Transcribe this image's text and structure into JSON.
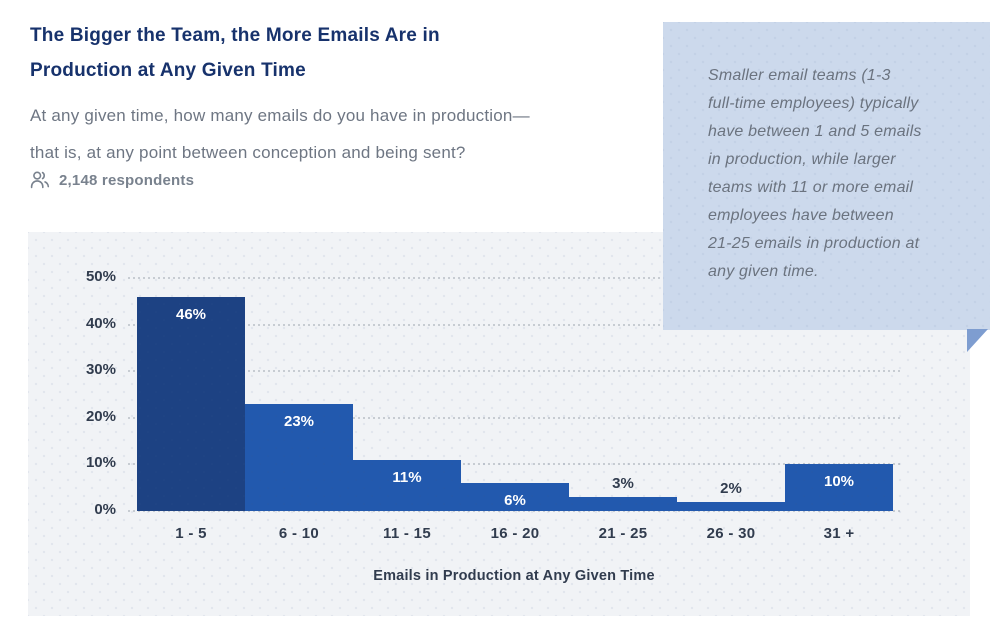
{
  "header": {
    "title_lines": [
      "The Bigger the Team, the More Emails Are in",
      "Production at Any Given Time"
    ],
    "subtitle_lines": [
      "At any given time, how many emails do you have in production—",
      "that is, at any point between conception and being sent?"
    ],
    "respondents_count": "2,148 respondents",
    "respondents_icon": "people-icon"
  },
  "callout": {
    "lines": [
      "Smaller email teams (1-3",
      "full-time employees) typically",
      "have between 1 and 5 emails",
      "in production, while larger",
      "teams with 11 or more email",
      "employees have between",
      "21-25 emails in production at",
      "any given time."
    ]
  },
  "chart_data": {
    "type": "bar",
    "categories": [
      "1 - 5",
      "6 - 10",
      "11 - 15",
      "16 - 20",
      "21 - 25",
      "26 - 30",
      "31 +"
    ],
    "values": [
      46,
      23,
      11,
      6,
      3,
      2,
      10
    ],
    "value_labels": [
      "46%",
      "23%",
      "11%",
      "6%",
      "3%",
      "2%",
      "10%"
    ],
    "title": "",
    "xlabel": "Emails in Production at Any Given Time",
    "ylabel": "",
    "ylim": [
      0,
      50
    ],
    "yticks": [
      "0%",
      "10%",
      "20%",
      "30%",
      "40%",
      "50%"
    ],
    "grid": "horizontal-dotted",
    "legend": "none",
    "label_placement_rule": "inside-top when value >= 6, above bar when value < 6"
  },
  "colors": {
    "title": "#17326c",
    "subtitle": "#6e7683",
    "muted": "#79828e",
    "panel_bg": "#f1f3f6",
    "grid": "#c7ccd2",
    "bar_first": "#1d4283",
    "bar_rest": "#2259ae",
    "axis_text": "#313c4e",
    "label_inside": "#ffffff",
    "label_outside": "#313c4e",
    "callout_bg": "#ccd9ec",
    "callout_text": "#6b737f",
    "callout_tail": "#7e9dd0"
  }
}
